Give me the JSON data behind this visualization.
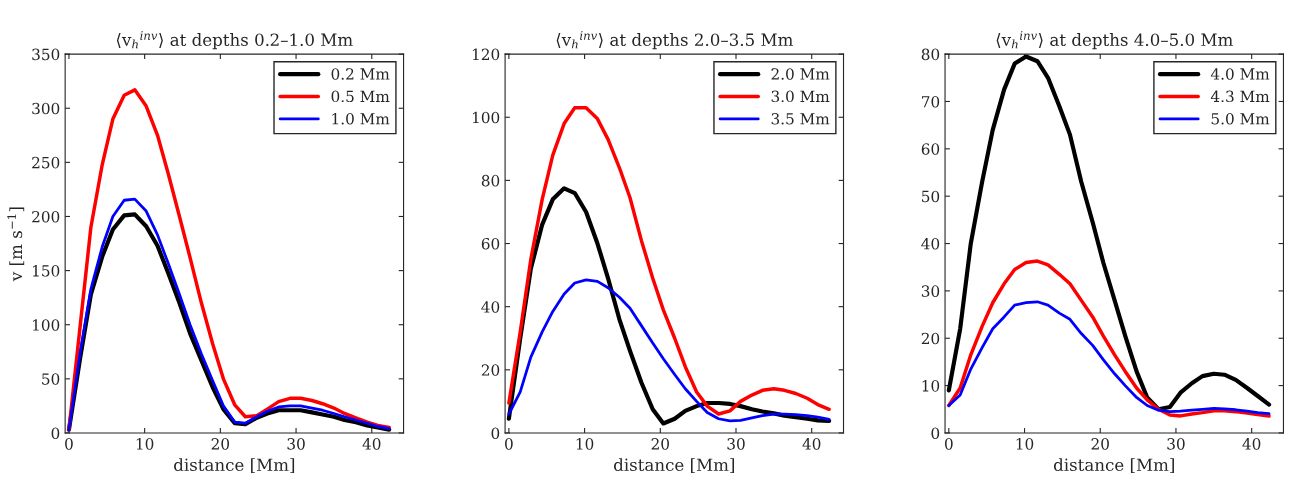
{
  "chart_data": [
    {
      "type": "line",
      "title": "⟨v$_{h}$$^{inv}$⟩ at depths 0.2–1.0 Mm",
      "xlabel": "distance [Mm]",
      "ylabel": "v [m s$^{−1}$]",
      "x": [
        0,
        1.5,
        2.9,
        4.4,
        5.8,
        7.3,
        8.7,
        10.2,
        11.7,
        13.1,
        14.6,
        16.0,
        17.5,
        19.0,
        20.4,
        21.9,
        23.3,
        24.8,
        26.2,
        27.7,
        29.2,
        30.6,
        32.1,
        33.5,
        35.0,
        36.4,
        37.9,
        39.4,
        40.8,
        42.3
      ],
      "series": [
        {
          "name": "0.2 Mm",
          "color": "#000000",
          "values": [
            3,
            70,
            128,
            163,
            188,
            201,
            202,
            191,
            173,
            148,
            120,
            92,
            67,
            42,
            22,
            9,
            8,
            14,
            18,
            21,
            21,
            21,
            19,
            17,
            15,
            12,
            10,
            7,
            5,
            3
          ]
        },
        {
          "name": "0.5 Mm",
          "color": "#ff0000",
          "values": [
            3,
            100,
            190,
            248,
            290,
            312,
            317,
            302,
            275,
            240,
            200,
            162,
            120,
            82,
            50,
            26,
            15,
            16,
            22,
            29,
            32,
            32,
            30,
            27,
            23,
            18,
            14,
            10,
            7,
            5
          ]
        },
        {
          "name": "1.0 Mm",
          "color": "#0000ff",
          "values": [
            3,
            75,
            133,
            172,
            200,
            215,
            216,
            205,
            183,
            157,
            128,
            100,
            73,
            48,
            25,
            10,
            9,
            15,
            20,
            24,
            25,
            25,
            23,
            21,
            18,
            15,
            12,
            9,
            6,
            4
          ]
        }
      ],
      "xlim": [
        -0.5,
        44.2
      ],
      "ylim": [
        0,
        350
      ],
      "xticks": [
        0,
        10,
        20,
        30,
        40
      ],
      "yticks": [
        0,
        50,
        100,
        150,
        200,
        250,
        300,
        350
      ],
      "legend": "top right",
      "grid": false
    },
    {
      "type": "line",
      "title": "⟨v$_{h}$$^{inv}$⟩ at depths 2.0–3.5 Mm",
      "xlabel": "distance [Mm]",
      "x": [
        0,
        1.5,
        2.9,
        4.4,
        5.8,
        7.3,
        8.7,
        10.2,
        11.7,
        13.1,
        14.6,
        16.0,
        17.5,
        19.0,
        20.4,
        21.9,
        23.3,
        24.8,
        26.2,
        27.7,
        29.2,
        30.6,
        32.1,
        33.5,
        35.0,
        36.4,
        37.9,
        39.4,
        40.8,
        42.3
      ],
      "series": [
        {
          "name": "2.0 Mm",
          "color": "#000000",
          "values": [
            4.5,
            30,
            52,
            66,
            74,
            77.5,
            76,
            70,
            60,
            49,
            36,
            26,
            16,
            7.5,
            3,
            4.5,
            7,
            8.5,
            9.5,
            9.5,
            9.2,
            8.5,
            7.5,
            6.8,
            6.2,
            5.5,
            5,
            4.5,
            4,
            3.8
          ]
        },
        {
          "name": "3.0 Mm",
          "color": "#ff0000",
          "values": [
            9.5,
            32,
            55,
            74,
            88,
            98,
            103,
            103,
            99.5,
            93,
            84,
            74.5,
            61,
            49,
            39,
            30,
            21,
            13,
            8.5,
            6,
            7,
            10,
            12,
            13.5,
            14,
            13.5,
            12.5,
            11,
            9,
            7.5
          ]
        },
        {
          "name": "3.5 Mm",
          "color": "#0000ff",
          "values": [
            6,
            13,
            24,
            32,
            38.5,
            44,
            47.5,
            48.5,
            48,
            46,
            43,
            39.5,
            34,
            28.5,
            23.5,
            18.5,
            14,
            10,
            6.5,
            4.5,
            3.8,
            4,
            4.8,
            5.5,
            6,
            6,
            5.8,
            5.5,
            5,
            4.3
          ]
        }
      ],
      "xlim": [
        -0.5,
        44.2
      ],
      "ylim": [
        0,
        120
      ],
      "xticks": [
        0,
        10,
        20,
        30,
        40
      ],
      "yticks": [
        0,
        20,
        40,
        60,
        80,
        100,
        120
      ],
      "legend": "top right",
      "grid": false
    },
    {
      "type": "line",
      "title": "⟨v$_{h}$$^{inv}$⟩ at depths 4.0–5.0 Mm",
      "xlabel": "distance [Mm]",
      "x": [
        0,
        1.5,
        2.9,
        4.4,
        5.8,
        7.3,
        8.7,
        10.2,
        11.7,
        13.1,
        14.6,
        16.0,
        17.5,
        19.0,
        20.4,
        21.9,
        23.3,
        24.8,
        26.2,
        27.7,
        29.2,
        30.6,
        32.1,
        33.5,
        35.0,
        36.4,
        37.9,
        39.4,
        40.8,
        42.3
      ],
      "series": [
        {
          "name": "4.0 Mm",
          "color": "#000000",
          "values": [
            9,
            22,
            40,
            53,
            64,
            72.5,
            78,
            79.5,
            78.5,
            75,
            69,
            63,
            53,
            44.5,
            36,
            28,
            20.5,
            13,
            7.5,
            5,
            5.5,
            8.5,
            10.5,
            12,
            12.5,
            12.3,
            11.2,
            9.5,
            7.8,
            6
          ]
        },
        {
          "name": "4.3 Mm",
          "color": "#ff0000",
          "values": [
            5.8,
            9.5,
            16.5,
            22.5,
            27.5,
            31.5,
            34.5,
            36,
            36.3,
            35.5,
            33.5,
            31.5,
            28,
            24.5,
            20.5,
            16.5,
            13,
            9.5,
            7,
            5,
            3.8,
            3.6,
            4,
            4.3,
            4.7,
            4.7,
            4.5,
            4.2,
            3.9,
            3.6
          ]
        },
        {
          "name": "5.0 Mm",
          "color": "#0000ff",
          "values": [
            5.8,
            8,
            13.5,
            18,
            22,
            24.5,
            27,
            27.5,
            27.7,
            27,
            25.3,
            24,
            21,
            18.5,
            15.5,
            12.5,
            10,
            7.5,
            5.8,
            4.8,
            4.5,
            4.6,
            4.8,
            5,
            5.2,
            5.1,
            4.9,
            4.6,
            4.3,
            4.1
          ]
        }
      ],
      "xlim": [
        -0.5,
        44.2
      ],
      "ylim": [
        0,
        80
      ],
      "xticks": [
        0,
        10,
        20,
        30,
        40
      ],
      "yticks": [
        0,
        10,
        20,
        30,
        40,
        50,
        60,
        70,
        80
      ],
      "legend": "top right",
      "grid": false
    }
  ]
}
